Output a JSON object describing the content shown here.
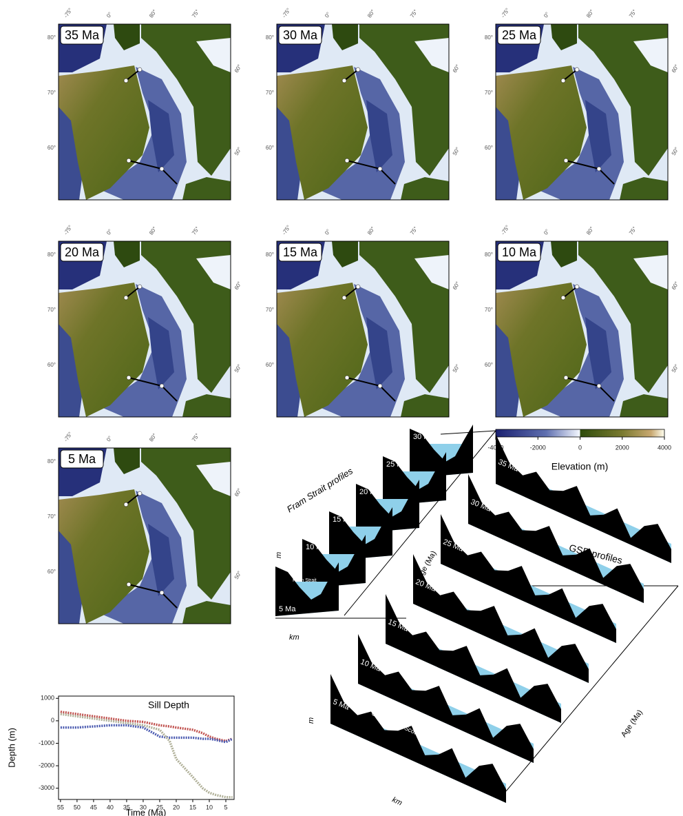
{
  "maps": {
    "panels": [
      {
        "label": "35 Ma"
      },
      {
        "label": "30 Ma"
      },
      {
        "label": "25 Ma"
      },
      {
        "label": "20 Ma"
      },
      {
        "label": "15 Ma"
      },
      {
        "label": "10 Ma"
      },
      {
        "label": "5 Ma"
      }
    ],
    "top_labels": [
      "-75°",
      "0°",
      "80°",
      "75°"
    ],
    "left_labels": [
      "80°",
      "70°",
      "60°"
    ],
    "right_labels": [
      "60°",
      "50°"
    ]
  },
  "colorbar": {
    "label": "Elevation (m)",
    "ticks": [
      -4000,
      -2000,
      0,
      2000,
      4000
    ]
  },
  "fram": {
    "title": "Fram Strait profiles",
    "panels": [
      "5 Ma",
      "10 Ma",
      "15 M",
      "20 Ma",
      "25 Ma",
      "30 Ma"
    ],
    "strait_label": "Fram Strait",
    "x_label": "km",
    "y_label": "m",
    "age_label": "Age (Ma)"
  },
  "gsr": {
    "title": "GSR profiles",
    "panels": [
      "5 Ma",
      "10 Ma",
      "15 Ma",
      "20 Ma",
      "25 Ma",
      "30 Ma",
      "35 Ma"
    ],
    "ridge_label": "Greenland – Scotland Ridge",
    "x_label": "km",
    "y_label": "m",
    "age_label": "Age (Ma)"
  },
  "chart_data": {
    "type": "line",
    "title": "Sill Depth",
    "x_label": "Time (Ma)",
    "y_label": "Depth (m)",
    "x": [
      55,
      50,
      45,
      40,
      35,
      30,
      25,
      22,
      20,
      15,
      12,
      10,
      8,
      5,
      3
    ],
    "series": [
      {
        "color": "#c0504d",
        "values": [
          400,
          300,
          200,
          100,
          0,
          -50,
          -200,
          -250,
          -300,
          -400,
          -550,
          -700,
          -800,
          -900,
          -800
        ]
      },
      {
        "color": "#4a5ab0",
        "values": [
          -300,
          -300,
          -250,
          -200,
          -200,
          -300,
          -700,
          -750,
          -750,
          -750,
          -800,
          -800,
          -850,
          -950,
          -800
        ]
      },
      {
        "color": "#b0b098",
        "values": [
          300,
          200,
          100,
          0,
          -100,
          -200,
          -400,
          -900,
          -1700,
          -2500,
          -3000,
          -3200,
          -3300,
          -3400,
          -3400
        ]
      }
    ],
    "xlim": [
      55.6,
      2.5
    ],
    "ylim": [
      -3500,
      1100
    ],
    "xticks": [
      55,
      50,
      45,
      40,
      35,
      30,
      25,
      20,
      15,
      10,
      5
    ],
    "yticks": [
      1000,
      0,
      -1000,
      -2000,
      -3000
    ]
  }
}
